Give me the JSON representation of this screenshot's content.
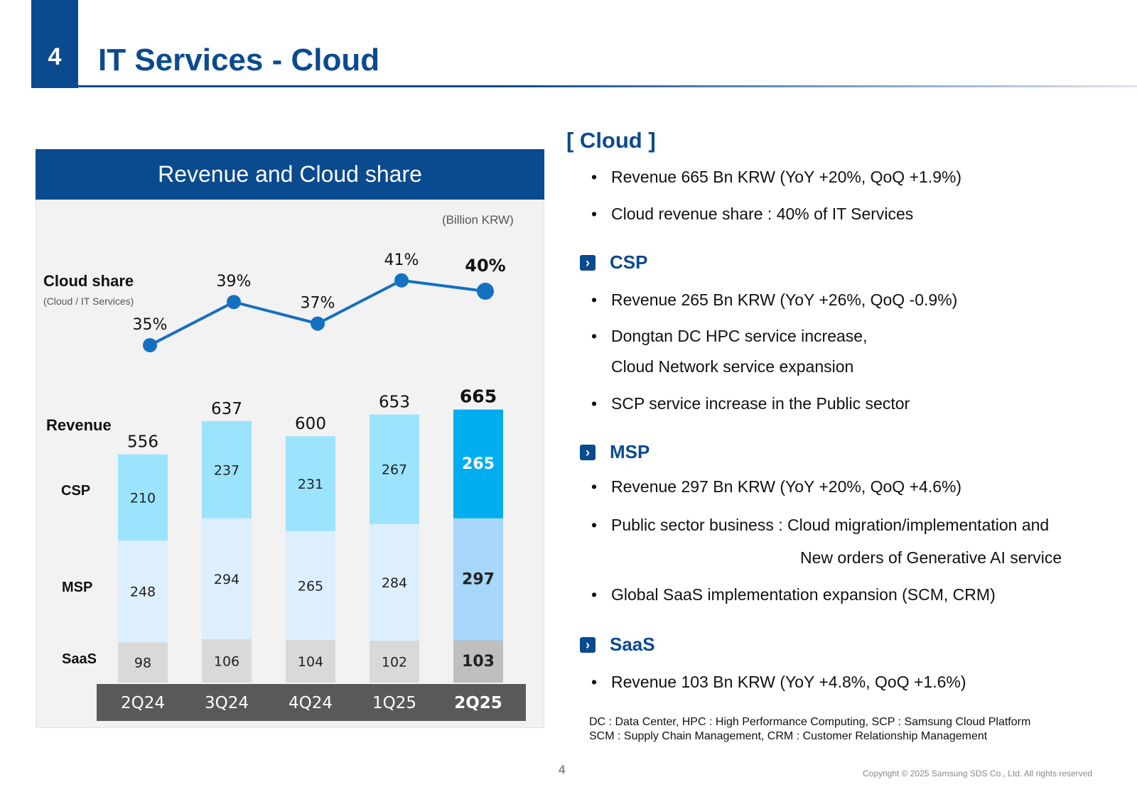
{
  "header": {
    "section_number": "4",
    "title": "IT Services - Cloud"
  },
  "panel": {
    "title": "Revenue and Cloud share",
    "unit": "(Billion KRW)",
    "cloud_share_label": "Cloud share",
    "cloud_share_sublabel": "(Cloud / IT Services)",
    "revenue_label": "Revenue",
    "segment_labels": {
      "csp": "CSP",
      "msp": "MSP",
      "saas": "SaaS"
    }
  },
  "chart_data": {
    "type": "bar",
    "stacked": true,
    "categories": [
      "2Q24",
      "3Q24",
      "4Q24",
      "1Q25",
      "2Q25"
    ],
    "highlight_category": "2Q25",
    "series": [
      {
        "name": "SaaS",
        "values": [
          98,
          106,
          104,
          102,
          103
        ],
        "color": "#d9d9d9",
        "highlight_color": "#bfbfbf"
      },
      {
        "name": "MSP",
        "values": [
          248,
          294,
          265,
          284,
          297
        ],
        "color": "#ddeefc",
        "highlight_color": "#a6d6fa"
      },
      {
        "name": "CSP",
        "values": [
          210,
          237,
          231,
          267,
          265
        ],
        "color": "#9ce3fd",
        "highlight_color": "#00aeef"
      }
    ],
    "totals": [
      556,
      637,
      600,
      653,
      665
    ],
    "total_labels": [
      "556",
      "637",
      "600",
      "653",
      "665"
    ],
    "line": {
      "name": "Cloud share",
      "values": [
        35,
        39,
        37,
        41,
        40
      ],
      "labels": [
        "35%",
        "39%",
        "37%",
        "41%",
        "40%"
      ],
      "color": "#1570c0"
    }
  },
  "right": {
    "cloud_heading": "[ Cloud ]",
    "cloud_bullets": [
      "Revenue 665 Bn KRW (YoY +20%, QoQ +1.9%)",
      "Cloud revenue share : 40% of IT Services"
    ],
    "csp": {
      "heading": "CSP",
      "bullets": [
        "Revenue 265 Bn KRW (YoY +26%, QoQ -0.9%)",
        "Dongtan DC HPC service increase,",
        "SCP service increase in the Public sector"
      ],
      "continuation": "Cloud Network service expansion"
    },
    "msp": {
      "heading": "MSP",
      "bullets": [
        "Revenue 297 Bn KRW (YoY +20%, QoQ +4.6%)",
        "Public sector business : Cloud migration/implementation and",
        "Global SaaS implementation expansion (SCM, CRM)"
      ],
      "continuation": "New orders of Generative AI service"
    },
    "saas": {
      "heading": "SaaS",
      "bullets": [
        "Revenue 103 Bn KRW (YoY +4.8%, QoQ +1.6%)"
      ]
    },
    "bullet_glyph": "•",
    "chevron_glyph": "›",
    "notes": [
      "DC : Data Center, HPC : High Performance Computing, SCP : Samsung Cloud Platform",
      "SCM : Supply Chain Management, CRM : Customer Relationship Management"
    ]
  },
  "footer": {
    "page_number": "4",
    "copyright": "Copyright © 2025 Samsung SDS Co., Ltd. All rights reserved"
  }
}
